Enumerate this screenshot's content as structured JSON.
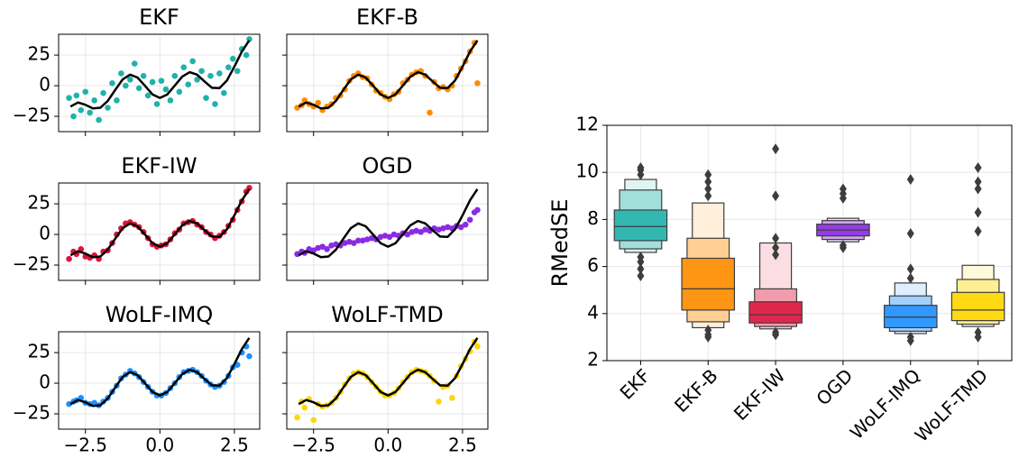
{
  "chart_data": [
    {
      "type": "scatter",
      "title": "EKF",
      "color": "#20b2aa",
      "x": [
        -3.05,
        -2.9,
        -2.8,
        -2.65,
        -2.5,
        -2.35,
        -2.2,
        -2.05,
        -1.9,
        -1.75,
        -1.6,
        -1.45,
        -1.3,
        -1.15,
        -1.0,
        -0.85,
        -0.7,
        -0.55,
        -0.4,
        -0.25,
        -0.1,
        0.05,
        0.2,
        0.35,
        0.5,
        0.65,
        0.8,
        0.95,
        1.1,
        1.25,
        1.4,
        1.55,
        1.7,
        1.85,
        2.0,
        2.15,
        2.3,
        2.45,
        2.6,
        2.75,
        2.9,
        3.0
      ],
      "y": [
        -10,
        -25,
        -8,
        -20,
        -5,
        -22,
        -12,
        -28,
        -6,
        -18,
        2,
        -12,
        10,
        0,
        5,
        18,
        -2,
        8,
        -8,
        3,
        -15,
        4,
        -3,
        -12,
        8,
        -5,
        15,
        1,
        20,
        5,
        12,
        -10,
        8,
        -15,
        10,
        -6,
        15,
        22,
        12,
        30,
        25,
        38
      ],
      "curve": {
        "color": "#000000",
        "x": [
          -3,
          -2.75,
          -2.5,
          -2.25,
          -2,
          -1.75,
          -1.5,
          -1.25,
          -1,
          -0.75,
          -0.5,
          -0.25,
          0,
          0.25,
          0.5,
          0.75,
          1,
          1.25,
          1.5,
          1.75,
          2,
          2.25,
          2.5,
          2.75,
          3
        ],
        "y": [
          -17,
          -13.7,
          -15.6,
          -18.5,
          -18,
          -12.4,
          -3.4,
          5.1,
          9,
          6.7,
          -0.1,
          -7.1,
          -10,
          -7.1,
          0.1,
          7.5,
          11,
          9,
          3.4,
          -1.7,
          -2,
          4.3,
          15.6,
          27.9,
          37
        ]
      },
      "xlim": [
        -3.4,
        3.35
      ],
      "ylim": [
        -37.5,
        42
      ],
      "xticks": [
        -2.5,
        0,
        2.5
      ],
      "show_xtick_labels": false,
      "yticks": [
        {
          "value": -25,
          "label": "−25"
        },
        0,
        25
      ],
      "show_ytick_labels": true,
      "grid": true
    },
    {
      "type": "scatter",
      "title": "EKF-B",
      "color": "#ff8c00",
      "x": [
        -3.05,
        -2.9,
        -2.8,
        -2.65,
        -2.5,
        -2.35,
        -2.2,
        -2.05,
        -1.9,
        -1.75,
        -1.6,
        -1.45,
        -1.3,
        -1.15,
        -1.0,
        -0.85,
        -0.7,
        -0.55,
        -0.4,
        -0.25,
        -0.1,
        0.05,
        0.2,
        0.35,
        0.5,
        0.65,
        0.8,
        0.95,
        1.1,
        1.25,
        1.4,
        1.55,
        1.7,
        1.85,
        2.0,
        2.15,
        2.3,
        2.45,
        2.6,
        2.75,
        2.9,
        3.0
      ],
      "y": [
        -18,
        -16,
        -12,
        -15,
        -17,
        -14,
        -20,
        -17,
        -15,
        -10,
        -8,
        -3,
        4,
        8,
        10,
        7,
        6,
        1,
        -4,
        -6,
        -9,
        -11,
        -7,
        -5,
        2,
        5,
        9,
        11,
        12,
        8,
        -22,
        3,
        -2,
        -1,
        -3,
        0,
        8,
        14,
        20,
        28,
        35,
        2
      ],
      "curve": {
        "color": "#000000",
        "x": [
          -3,
          -2.75,
          -2.5,
          -2.25,
          -2,
          -1.75,
          -1.5,
          -1.25,
          -1,
          -0.75,
          -0.5,
          -0.25,
          0,
          0.25,
          0.5,
          0.75,
          1,
          1.25,
          1.5,
          1.75,
          2,
          2.25,
          2.5,
          2.75,
          3
        ],
        "y": [
          -17,
          -13.7,
          -15.6,
          -18.5,
          -18,
          -12.4,
          -3.4,
          5.1,
          9,
          6.7,
          -0.1,
          -7.1,
          -10,
          -7.1,
          0.1,
          7.5,
          11,
          9,
          3.4,
          -1.7,
          -2,
          4.3,
          15.6,
          27.9,
          37
        ]
      },
      "xlim": [
        -3.4,
        3.35
      ],
      "ylim": [
        -37.5,
        42
      ],
      "xticks": [
        -2.5,
        0,
        2.5
      ],
      "show_xtick_labels": false,
      "yticks": [
        -25,
        0,
        25
      ],
      "show_ytick_labels": false,
      "grid": true
    },
    {
      "type": "scatter",
      "title": "EKF-IW",
      "color": "#dc143c",
      "x": [
        -3.05,
        -2.9,
        -2.8,
        -2.65,
        -2.5,
        -2.35,
        -2.2,
        -2.05,
        -1.9,
        -1.75,
        -1.6,
        -1.45,
        -1.3,
        -1.15,
        -1.0,
        -0.85,
        -0.7,
        -0.55,
        -0.4,
        -0.25,
        -0.1,
        0.05,
        0.2,
        0.35,
        0.5,
        0.65,
        0.8,
        0.95,
        1.1,
        1.25,
        1.4,
        1.55,
        1.7,
        1.85,
        2.0,
        2.15,
        2.3,
        2.45,
        2.6,
        2.75,
        2.9,
        3.0
      ],
      "y": [
        -20,
        -14,
        -16,
        -12,
        -18,
        -19,
        -17,
        -20,
        -14,
        -13,
        -7,
        0,
        5,
        9,
        10,
        8,
        6,
        2,
        -3,
        -8,
        -10,
        -9,
        -8,
        -4,
        1,
        4,
        9,
        10,
        11,
        8,
        6,
        2,
        0,
        -3,
        -1,
        2,
        7,
        12,
        20,
        27,
        35,
        38
      ],
      "curve": {
        "color": "#000000",
        "x": [
          -3,
          -2.75,
          -2.5,
          -2.25,
          -2,
          -1.75,
          -1.5,
          -1.25,
          -1,
          -0.75,
          -0.5,
          -0.25,
          0,
          0.25,
          0.5,
          0.75,
          1,
          1.25,
          1.5,
          1.75,
          2,
          2.25,
          2.5,
          2.75,
          3
        ],
        "y": [
          -17,
          -13.7,
          -15.6,
          -18.5,
          -18,
          -12.4,
          -3.4,
          5.1,
          9,
          6.7,
          -0.1,
          -7.1,
          -10,
          -7.1,
          0.1,
          7.5,
          11,
          9,
          3.4,
          -1.7,
          -2,
          4.3,
          15.6,
          27.9,
          37
        ]
      },
      "xlim": [
        -3.4,
        3.35
      ],
      "ylim": [
        -37.5,
        42
      ],
      "xticks": [
        -2.5,
        0,
        2.5
      ],
      "show_xtick_labels": false,
      "yticks": [
        {
          "value": -25,
          "label": "−25"
        },
        0,
        25
      ],
      "show_ytick_labels": true,
      "grid": true
    },
    {
      "type": "scatter",
      "title": "OGD",
      "color": "#8a2be2",
      "x": [
        -3.05,
        -2.9,
        -2.8,
        -2.65,
        -2.5,
        -2.35,
        -2.2,
        -2.05,
        -1.9,
        -1.75,
        -1.6,
        -1.45,
        -1.3,
        -1.15,
        -1.0,
        -0.85,
        -0.7,
        -0.55,
        -0.4,
        -0.25,
        -0.1,
        0.05,
        0.2,
        0.35,
        0.5,
        0.65,
        0.8,
        0.95,
        1.1,
        1.25,
        1.4,
        1.55,
        1.7,
        1.85,
        2.0,
        2.15,
        2.3,
        2.45,
        2.6,
        2.75,
        2.9,
        3.0
      ],
      "y": [
        -16,
        -14,
        -15,
        -12,
        -13,
        -11,
        -10,
        -12,
        -9,
        -8,
        -9,
        -7,
        -6,
        -7,
        -5,
        -5,
        -4,
        -3,
        -4,
        -2,
        -1,
        -2,
        0,
        -1,
        1,
        0,
        2,
        3,
        2,
        4,
        3,
        5,
        4,
        5,
        6,
        5,
        7,
        6,
        8,
        12,
        18,
        20
      ],
      "curve": {
        "color": "#000000",
        "x": [
          -3,
          -2.75,
          -2.5,
          -2.25,
          -2,
          -1.75,
          -1.5,
          -1.25,
          -1,
          -0.75,
          -0.5,
          -0.25,
          0,
          0.25,
          0.5,
          0.75,
          1,
          1.25,
          1.5,
          1.75,
          2,
          2.25,
          2.5,
          2.75,
          3
        ],
        "y": [
          -17,
          -13.7,
          -15.6,
          -18.5,
          -18,
          -12.4,
          -3.4,
          5.1,
          9,
          6.7,
          -0.1,
          -7.1,
          -10,
          -7.1,
          0.1,
          7.5,
          11,
          9,
          3.4,
          -1.7,
          -2,
          4.3,
          15.6,
          27.9,
          37
        ]
      },
      "xlim": [
        -3.4,
        3.35
      ],
      "ylim": [
        -37.5,
        42
      ],
      "xticks": [
        -2.5,
        0,
        2.5
      ],
      "show_xtick_labels": false,
      "yticks": [
        -25,
        0,
        25
      ],
      "show_ytick_labels": false,
      "grid": true
    },
    {
      "type": "scatter",
      "title": "WoLF-IMQ",
      "color": "#1e90ff",
      "x": [
        -3.05,
        -2.9,
        -2.8,
        -2.65,
        -2.5,
        -2.35,
        -2.2,
        -2.05,
        -1.9,
        -1.75,
        -1.6,
        -1.45,
        -1.3,
        -1.15,
        -1.0,
        -0.85,
        -0.7,
        -0.55,
        -0.4,
        -0.25,
        -0.1,
        0.05,
        0.2,
        0.35,
        0.5,
        0.65,
        0.8,
        0.95,
        1.1,
        1.25,
        1.4,
        1.55,
        1.7,
        1.85,
        2.0,
        2.15,
        2.3,
        2.45,
        2.6,
        2.75,
        2.9,
        3.0
      ],
      "y": [
        -17,
        -15,
        -14,
        -12,
        -16,
        -17,
        -16,
        -18,
        -15,
        -12,
        -7,
        -2,
        4,
        7,
        10,
        8,
        5,
        1,
        -3,
        -7,
        -10,
        -10,
        -8,
        -4,
        0,
        5,
        9,
        10,
        11,
        9,
        6,
        2,
        -1,
        -3,
        -2,
        1,
        6,
        13,
        15,
        25,
        30,
        22
      ],
      "curve": {
        "color": "#000000",
        "x": [
          -3,
          -2.75,
          -2.5,
          -2.25,
          -2,
          -1.75,
          -1.5,
          -1.25,
          -1,
          -0.75,
          -0.5,
          -0.25,
          0,
          0.25,
          0.5,
          0.75,
          1,
          1.25,
          1.5,
          1.75,
          2,
          2.25,
          2.5,
          2.75,
          3
        ],
        "y": [
          -17,
          -13.7,
          -15.6,
          -18.5,
          -18,
          -12.4,
          -3.4,
          5.1,
          9,
          6.7,
          -0.1,
          -7.1,
          -10,
          -7.1,
          0.1,
          7.5,
          11,
          9,
          3.4,
          -1.7,
          -2,
          4.3,
          15.6,
          27.9,
          37
        ]
      },
      "xlim": [
        -3.4,
        3.35
      ],
      "ylim": [
        -37.5,
        42
      ],
      "xticks": [
        {
          "value": -2.5,
          "label": "−2.5"
        },
        {
          "value": 0,
          "label": "0.0"
        },
        2.5
      ],
      "show_xtick_labels": true,
      "yticks": [
        {
          "value": -25,
          "label": "−25"
        },
        0,
        25
      ],
      "show_ytick_labels": true,
      "grid": true
    },
    {
      "type": "scatter",
      "title": "WoLF-TMD",
      "color": "#ffd700",
      "x": [
        -3.05,
        -2.9,
        -2.8,
        -2.65,
        -2.5,
        -2.35,
        -2.2,
        -2.05,
        -1.9,
        -1.75,
        -1.6,
        -1.45,
        -1.3,
        -1.15,
        -1.0,
        -0.85,
        -0.7,
        -0.55,
        -0.4,
        -0.25,
        -0.1,
        0.05,
        0.2,
        0.35,
        0.5,
        0.65,
        0.8,
        0.95,
        1.1,
        1.25,
        1.4,
        1.55,
        1.7,
        1.85,
        2.0,
        2.15,
        2.3,
        2.45,
        2.6,
        2.75,
        2.9,
        3.0
      ],
      "y": [
        -28,
        -15,
        -20,
        -13,
        -30,
        -17,
        -19,
        -18,
        -16,
        -12,
        -7,
        -1,
        4,
        8,
        9,
        8,
        5,
        1,
        -3,
        -7,
        -10,
        -10,
        -8,
        -4,
        1,
        5,
        9,
        11,
        10,
        9,
        6,
        2,
        -15,
        -3,
        -2,
        -12,
        6,
        14,
        20,
        26,
        34,
        30
      ],
      "curve": {
        "color": "#000000",
        "x": [
          -3,
          -2.75,
          -2.5,
          -2.25,
          -2,
          -1.75,
          -1.5,
          -1.25,
          -1,
          -0.75,
          -0.5,
          -0.25,
          0,
          0.25,
          0.5,
          0.75,
          1,
          1.25,
          1.5,
          1.75,
          2,
          2.25,
          2.5,
          2.75,
          3
        ],
        "y": [
          -17,
          -13.7,
          -15.6,
          -18.5,
          -18,
          -12.4,
          -3.4,
          5.1,
          9,
          6.7,
          -0.1,
          -7.1,
          -10,
          -7.1,
          0.1,
          7.5,
          11,
          9,
          3.4,
          -1.7,
          -2,
          4.3,
          15.6,
          27.9,
          37
        ]
      },
      "xlim": [
        -3.4,
        3.35
      ],
      "ylim": [
        -37.5,
        42
      ],
      "xticks": [
        {
          "value": -2.5,
          "label": "−2.5"
        },
        {
          "value": 0,
          "label": "0.0"
        },
        2.5
      ],
      "show_xtick_labels": true,
      "yticks": [
        -25,
        0,
        25
      ],
      "show_ytick_labels": false,
      "grid": true
    },
    {
      "type": "boxen",
      "ylabel": "RMedSE",
      "categories": [
        "EKF",
        "EKF-B",
        "EKF-IW",
        "OGD",
        "WoLF-IMQ",
        "WoLF-TMD"
      ],
      "ylim": [
        2,
        12
      ],
      "yticks": [
        2,
        4,
        6,
        8,
        10,
        12
      ],
      "grid": true,
      "edge_color": "#3d3d3d",
      "boxes": [
        {
          "color": "#20b2aa",
          "median": 7.7,
          "levels": [
            [
              7.1,
              8.4
            ],
            [
              6.75,
              9.25
            ],
            [
              6.6,
              9.7
            ]
          ],
          "outliers": [
            5.6,
            5.9,
            6.2,
            6.4,
            9.9,
            10.1,
            10.2
          ]
        },
        {
          "color": "#ff8c00",
          "median": 5.05,
          "levels": [
            [
              4.15,
              6.35
            ],
            [
              3.65,
              7.2
            ],
            [
              3.4,
              8.7
            ]
          ],
          "outliers": [
            3.0,
            3.1,
            3.3,
            9.0,
            9.3,
            9.6,
            9.9
          ]
        },
        {
          "color": "#dc143c",
          "median": 3.95,
          "levels": [
            [
              3.6,
              4.5
            ],
            [
              3.45,
              5.05
            ],
            [
              3.35,
              7.0
            ]
          ],
          "outliers": [
            3.1,
            3.2,
            6.5,
            6.8,
            7.2,
            9.0,
            11.0
          ]
        },
        {
          "color": "#8a2be2",
          "median": 7.55,
          "levels": [
            [
              7.3,
              7.8
            ],
            [
              7.15,
              7.95
            ],
            [
              7.05,
              8.05
            ]
          ],
          "outliers": [
            6.8,
            6.9,
            8.9,
            9.1,
            9.3
          ]
        },
        {
          "color": "#1e90ff",
          "median": 3.85,
          "levels": [
            [
              3.4,
              4.35
            ],
            [
              3.25,
              4.75
            ],
            [
              3.15,
              5.3
            ]
          ],
          "outliers": [
            2.85,
            3.0,
            5.5,
            5.9,
            7.4,
            9.7
          ]
        },
        {
          "color": "#ffd700",
          "median": 4.15,
          "levels": [
            [
              3.7,
              4.9
            ],
            [
              3.55,
              5.45
            ],
            [
              3.45,
              6.05
            ]
          ],
          "outliers": [
            3.0,
            3.2,
            7.5,
            8.3,
            9.3,
            9.6,
            10.2
          ]
        }
      ]
    }
  ]
}
